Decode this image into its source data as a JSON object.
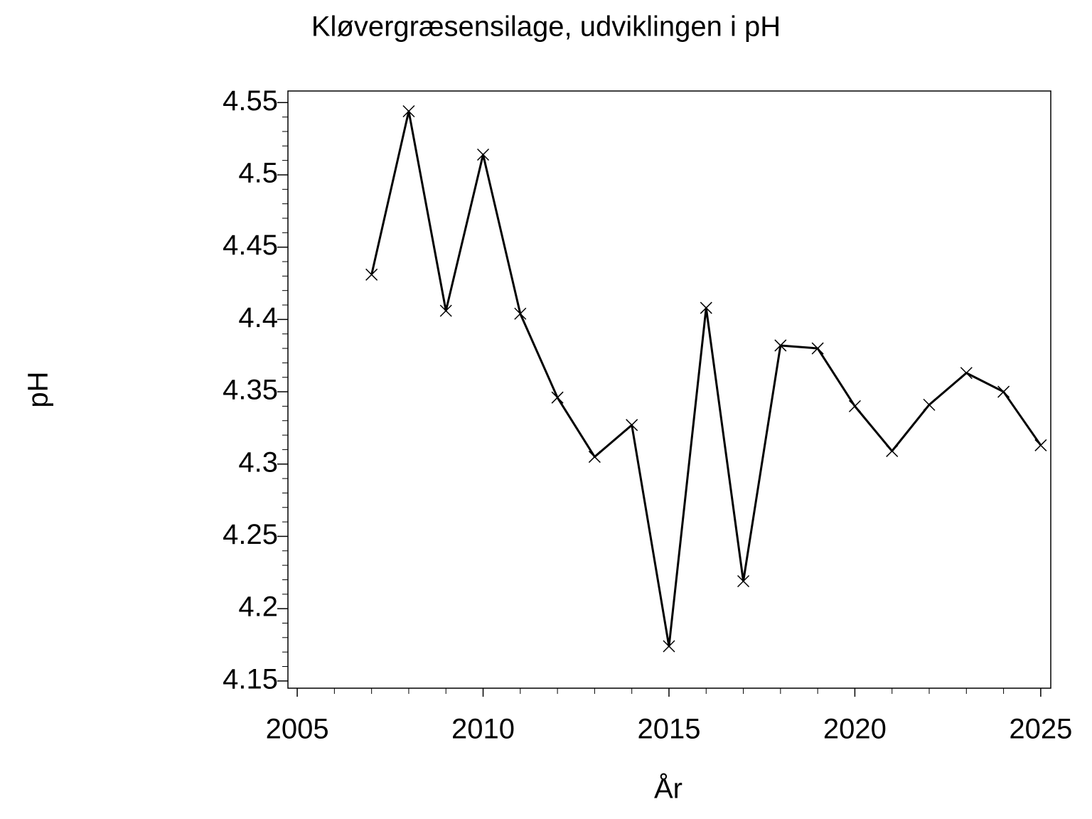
{
  "chart_data": {
    "type": "line",
    "title": "Kløvergræsensilage,  udviklingen  i  pH",
    "x_label": "År",
    "y_label": "pH",
    "x": [
      2007,
      2008,
      2009,
      2010,
      2011,
      2012,
      2013,
      2014,
      2015,
      2016,
      2017,
      2018,
      2019,
      2020,
      2021,
      2022,
      2023,
      2024,
      2025
    ],
    "series": [
      {
        "name": "pH",
        "color": "#000000",
        "values": [
          4.431,
          4.544,
          4.406,
          4.514,
          4.404,
          4.346,
          4.305,
          4.327,
          4.174,
          4.408,
          4.219,
          4.382,
          4.38,
          4.34,
          4.309,
          4.341,
          4.363,
          4.35,
          4.313
        ]
      }
    ],
    "xlim": [
      2004.75,
      2025.27
    ],
    "xticks": [
      2005,
      2010,
      2015,
      2020,
      2025
    ],
    "ylim": [
      4.145,
      4.558
    ],
    "yticks": [
      4.15,
      4.2,
      4.25,
      4.3,
      4.35,
      4.4,
      4.45,
      4.5,
      4.55
    ]
  }
}
